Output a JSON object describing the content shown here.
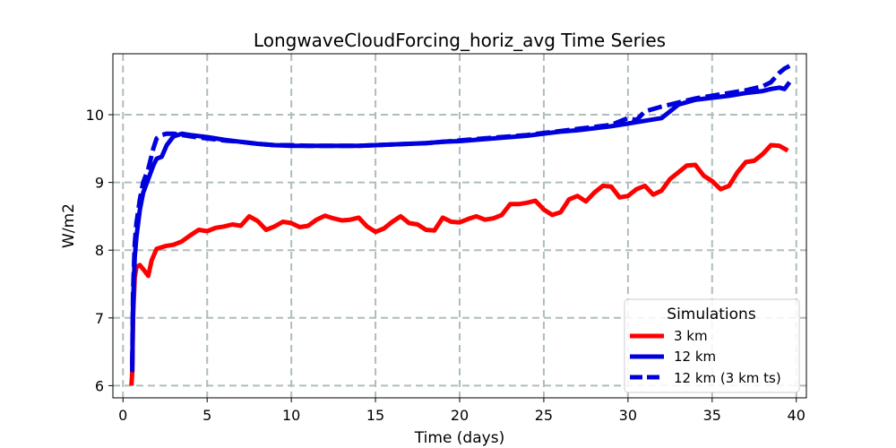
{
  "chart_data": {
    "type": "line",
    "title": "LongwaveCloudForcing_horiz_avg Time Series",
    "xlabel": "Time (days)",
    "ylabel": "W/m2",
    "xlim": [
      -0.6,
      40.6
    ],
    "ylim": [
      5.82,
      10.9
    ],
    "xticks": [
      0,
      5,
      10,
      15,
      20,
      25,
      30,
      35,
      40
    ],
    "yticks": [
      6,
      7,
      8,
      9,
      10
    ],
    "xtick_labels": [
      "0",
      "5",
      "10",
      "15",
      "20",
      "25",
      "30",
      "35",
      "40"
    ],
    "ytick_labels": [
      "6",
      "7",
      "8",
      "9",
      "10"
    ],
    "grid": true,
    "legend": {
      "title": "Simulations",
      "position": "lower-right"
    },
    "series": [
      {
        "name": "3 km",
        "color": "#ff0000",
        "style": "solid",
        "x": [
          0.5,
          0.55,
          0.6,
          0.7,
          0.8,
          1.0,
          1.2,
          1.5,
          1.7,
          2.0,
          2.5,
          3.0,
          3.5,
          4.0,
          4.5,
          5.0,
          5.5,
          6.0,
          6.5,
          7.0,
          7.5,
          8.0,
          8.5,
          9.0,
          9.5,
          10.0,
          10.5,
          11.0,
          11.5,
          12.0,
          12.5,
          13.0,
          13.5,
          14.0,
          14.5,
          15.0,
          15.5,
          16.0,
          16.5,
          17.0,
          17.5,
          18.0,
          18.5,
          19.0,
          19.5,
          20.0,
          20.5,
          21.0,
          21.5,
          22.0,
          22.5,
          23.0,
          23.5,
          24.0,
          24.5,
          25.0,
          25.5,
          26.0,
          26.5,
          27.0,
          27.5,
          28.0,
          28.5,
          29.0,
          29.5,
          30.0,
          30.5,
          31.0,
          31.5,
          32.0,
          32.5,
          33.0,
          33.5,
          34.0,
          34.5,
          35.0,
          35.5,
          36.0,
          36.5,
          37.0,
          37.5,
          38.0,
          38.5,
          39.0,
          39.5
        ],
        "y": [
          6.0,
          6.2,
          7.0,
          7.6,
          7.75,
          7.78,
          7.72,
          7.62,
          7.85,
          8.02,
          8.06,
          8.08,
          8.13,
          8.22,
          8.3,
          8.28,
          8.33,
          8.35,
          8.38,
          8.36,
          8.5,
          8.43,
          8.3,
          8.35,
          8.42,
          8.4,
          8.34,
          8.36,
          8.45,
          8.51,
          8.47,
          8.44,
          8.45,
          8.48,
          8.35,
          8.27,
          8.32,
          8.42,
          8.5,
          8.4,
          8.38,
          8.3,
          8.29,
          8.48,
          8.42,
          8.41,
          8.46,
          8.5,
          8.45,
          8.47,
          8.52,
          8.68,
          8.68,
          8.7,
          8.73,
          8.6,
          8.52,
          8.56,
          8.75,
          8.8,
          8.72,
          8.85,
          8.95,
          8.94,
          8.78,
          8.8,
          8.9,
          8.95,
          8.82,
          8.88,
          9.05,
          9.15,
          9.25,
          9.26,
          9.1,
          9.02,
          8.9,
          8.95,
          9.15,
          9.3,
          9.32,
          9.42,
          9.55,
          9.54,
          9.47
        ]
      },
      {
        "name": "12 km",
        "color": "#0000dd",
        "style": "solid",
        "x": [
          0.55,
          0.6,
          0.7,
          0.8,
          1.0,
          1.2,
          1.5,
          1.8,
          2.0,
          2.3,
          2.6,
          3.0,
          3.5,
          4.0,
          5.0,
          6.0,
          7.0,
          8.0,
          9.0,
          10.0,
          11.0,
          12.0,
          13.0,
          14.0,
          15.0,
          16.0,
          17.0,
          18.0,
          19.0,
          20.0,
          21.0,
          22.0,
          23.0,
          24.0,
          25.0,
          26.0,
          27.0,
          28.0,
          29.0,
          30.0,
          31.0,
          32.0,
          32.5,
          33.0,
          34.0,
          35.0,
          36.0,
          37.0,
          38.0,
          38.5,
          39.0,
          39.3,
          39.6
        ],
        "y": [
          6.2,
          7.2,
          7.9,
          8.2,
          8.6,
          8.85,
          9.05,
          9.25,
          9.35,
          9.38,
          9.55,
          9.68,
          9.72,
          9.7,
          9.67,
          9.63,
          9.6,
          9.57,
          9.55,
          9.54,
          9.54,
          9.54,
          9.54,
          9.54,
          9.55,
          9.56,
          9.57,
          9.58,
          9.6,
          9.61,
          9.63,
          9.65,
          9.67,
          9.69,
          9.72,
          9.75,
          9.77,
          9.8,
          9.83,
          9.87,
          9.91,
          9.95,
          10.05,
          10.15,
          10.22,
          10.25,
          10.28,
          10.32,
          10.35,
          10.38,
          10.4,
          10.38,
          10.48
        ]
      },
      {
        "name": "12 km (3 km ts)",
        "color": "#0000dd",
        "style": "dashed",
        "x": [
          0.55,
          0.6,
          0.7,
          0.8,
          1.0,
          1.2,
          1.5,
          1.8,
          2.0,
          2.3,
          2.6,
          3.0,
          3.5,
          4.0,
          5.0,
          6.0,
          7.0,
          8.0,
          9.0,
          10.0,
          11.0,
          12.0,
          13.0,
          14.0,
          15.0,
          16.0,
          17.0,
          18.0,
          19.0,
          20.0,
          21.0,
          22.0,
          23.0,
          24.0,
          25.0,
          26.0,
          27.0,
          28.0,
          29.0,
          29.5,
          30.0,
          30.5,
          31.0,
          32.0,
          33.0,
          34.0,
          35.0,
          36.0,
          37.0,
          38.0,
          38.5,
          39.0,
          39.3,
          39.6
        ],
        "y": [
          6.3,
          7.4,
          8.1,
          8.4,
          8.75,
          9.0,
          9.2,
          9.5,
          9.65,
          9.7,
          9.72,
          9.72,
          9.7,
          9.68,
          9.65,
          9.62,
          9.6,
          9.57,
          9.55,
          9.55,
          9.54,
          9.54,
          9.54,
          9.54,
          9.55,
          9.56,
          9.57,
          9.58,
          9.6,
          9.62,
          9.64,
          9.66,
          9.68,
          9.7,
          9.73,
          9.76,
          9.79,
          9.82,
          9.85,
          9.9,
          9.95,
          9.92,
          10.05,
          10.12,
          10.18,
          10.24,
          10.28,
          10.32,
          10.36,
          10.42,
          10.48,
          10.62,
          10.68,
          10.72
        ]
      }
    ]
  }
}
